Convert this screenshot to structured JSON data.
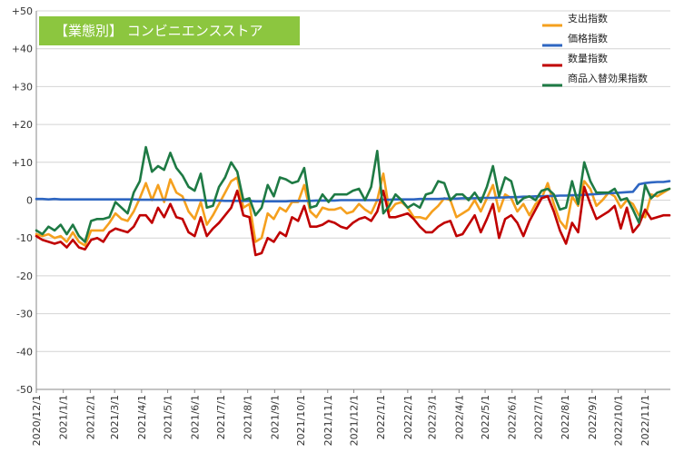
{
  "chart_data": {
    "type": "line",
    "title": "【業態別】 コンビニエンスストア",
    "title_bg_color": "#8cc63f",
    "xlabel": "",
    "ylabel": "",
    "ylim": [
      -50,
      50
    ],
    "y_ticks": [
      -50,
      -40,
      -30,
      -20,
      -10,
      0,
      10,
      20,
      30,
      40,
      50
    ],
    "y_tick_labels": [
      "-50",
      "-40",
      "-30",
      "-20",
      "-10",
      "0",
      "+10",
      "+20",
      "+30",
      "+40",
      "+50"
    ],
    "x_tick_labels": [
      "2020/12/1",
      "2021/1/1",
      "2021/2/1",
      "2021/3/1",
      "2021/4/1",
      "2021/5/1",
      "2021/6/1",
      "2021/7/1",
      "2021/8/1",
      "2021/9/1",
      "2021/10/1",
      "2021/11/1",
      "2021/12/1",
      "2022/1/1",
      "2022/2/1",
      "2022/3/1",
      "2022/4/1",
      "2022/5/1",
      "2022/6/1",
      "2022/7/1",
      "2022/8/1",
      "2022/9/1",
      "2022/10/1",
      "2022/11/1"
    ],
    "x_start": "2020/12/1",
    "x_end": "2022/11/30",
    "grid": "horizontal",
    "legend_position": "top-right",
    "x": [
      "2020/12/1",
      "2020/12/8",
      "2020/12/15",
      "2020/12/22",
      "2020/12/29",
      "2021/1/5",
      "2021/1/12",
      "2021/1/19",
      "2021/1/26",
      "2021/2/2",
      "2021/2/9",
      "2021/2/16",
      "2021/2/23",
      "2021/3/2",
      "2021/3/9",
      "2021/3/16",
      "2021/3/23",
      "2021/3/30",
      "2021/4/6",
      "2021/4/13",
      "2021/4/20",
      "2021/4/27",
      "2021/5/4",
      "2021/5/11",
      "2021/5/18",
      "2021/5/25",
      "2021/6/1",
      "2021/6/8",
      "2021/6/15",
      "2021/6/22",
      "2021/6/29",
      "2021/7/6",
      "2021/7/13",
      "2021/7/20",
      "2021/7/27",
      "2021/8/3",
      "2021/8/10",
      "2021/8/17",
      "2021/8/24",
      "2021/8/31",
      "2021/9/7",
      "2021/9/14",
      "2021/9/21",
      "2021/9/28",
      "2021/10/5",
      "2021/10/12",
      "2021/10/19",
      "2021/10/26",
      "2021/11/2",
      "2021/11/9",
      "2021/11/16",
      "2021/11/23",
      "2021/11/30",
      "2021/12/7",
      "2021/12/14",
      "2021/12/21",
      "2021/12/28",
      "2022/1/4",
      "2022/1/11",
      "2022/1/18",
      "2022/1/25",
      "2022/2/1",
      "2022/2/8",
      "2022/2/15",
      "2022/2/22",
      "2022/3/1",
      "2022/3/8",
      "2022/3/15",
      "2022/3/22",
      "2022/3/29",
      "2022/4/5",
      "2022/4/12",
      "2022/4/19",
      "2022/4/26",
      "2022/5/3",
      "2022/5/10",
      "2022/5/17",
      "2022/5/24",
      "2022/5/31",
      "2022/6/7",
      "2022/6/14",
      "2022/6/21",
      "2022/6/28",
      "2022/7/5",
      "2022/7/12",
      "2022/7/19",
      "2022/7/26",
      "2022/8/2",
      "2022/8/9",
      "2022/8/16",
      "2022/8/23",
      "2022/8/30",
      "2022/9/6",
      "2022/9/13",
      "2022/9/20",
      "2022/9/27",
      "2022/10/4",
      "2022/10/11",
      "2022/10/18",
      "2022/10/25",
      "2022/11/1",
      "2022/11/8",
      "2022/11/15",
      "2022/11/22",
      "2022/11/29"
    ],
    "series": [
      {
        "name": "支出指数",
        "color": "#f5a01e",
        "values": [
          -9,
          -9.5,
          -9,
          -10,
          -9.5,
          -11,
          -8.5,
          -11,
          -12,
          -8,
          -8,
          -8,
          -6,
          -3.5,
          -5,
          -5.5,
          -3,
          0.5,
          4.5,
          0,
          4,
          -0.5,
          5.5,
          2,
          1,
          -3,
          -5,
          -0.5,
          -6.5,
          -4,
          -1,
          2,
          5,
          6,
          -2,
          -1,
          -11,
          -10,
          -3.5,
          -5,
          -2,
          -3,
          -0.5,
          -0.5,
          4,
          -3,
          -4.5,
          -2,
          -2.5,
          -2.5,
          -2,
          -3.5,
          -3,
          -1,
          -2.5,
          -3.5,
          0,
          7,
          -3,
          -1,
          -0.5,
          -2,
          -4.5,
          -4.5,
          -5,
          -3,
          -1.5,
          0.5,
          0,
          -4.5,
          -3.5,
          -2.5,
          0,
          -3,
          0.5,
          4,
          -3,
          1.5,
          0.5,
          -3,
          -1,
          -4,
          -1,
          0.5,
          4.5,
          -1,
          -5.5,
          -7.5,
          1,
          -1.5,
          5,
          3,
          -1.5,
          0,
          2,
          1,
          -2,
          0,
          -1,
          -4,
          -4.5,
          1.5,
          1,
          2,
          3
        ]
      },
      {
        "name": "価格指数",
        "color": "#2e66c2",
        "values": [
          0.3,
          0.3,
          0.2,
          0.3,
          0.2,
          0.2,
          0.2,
          0.2,
          0.2,
          0.2,
          0.2,
          0.2,
          0.2,
          0.2,
          0.2,
          0.2,
          0.2,
          0.1,
          0.1,
          0.1,
          0.1,
          0.1,
          0.1,
          0.1,
          0.1,
          0.0,
          0.0,
          0.0,
          -0.1,
          -0.1,
          -0.1,
          -0.2,
          -0.2,
          -0.2,
          -0.2,
          -0.2,
          -0.3,
          -0.3,
          -0.3,
          -0.3,
          -0.3,
          -0.3,
          -0.2,
          -0.2,
          -0.2,
          -0.2,
          -0.1,
          -0.1,
          -0.1,
          -0.1,
          0.0,
          0.0,
          0.0,
          0.0,
          0.0,
          0.0,
          0.0,
          0.1,
          0.1,
          0.2,
          0.2,
          0.2,
          0.2,
          0.3,
          0.3,
          0.3,
          0.3,
          0.4,
          0.4,
          0.4,
          0.5,
          0.5,
          0.5,
          0.6,
          0.6,
          0.6,
          0.7,
          0.7,
          0.8,
          0.8,
          0.9,
          0.9,
          1.0,
          1.0,
          1.1,
          1.1,
          1.2,
          1.2,
          1.3,
          1.3,
          1.4,
          1.5,
          1.6,
          1.7,
          1.8,
          1.9,
          2.0,
          2.1,
          2.2,
          4.2,
          4.5,
          4.7,
          4.8,
          4.8,
          5.0
        ]
      },
      {
        "name": "数量指数",
        "color": "#c00000",
        "values": [
          -9.5,
          -10.5,
          -11,
          -11.5,
          -11,
          -12.5,
          -10.5,
          -12.5,
          -13,
          -10.5,
          -10,
          -11,
          -8.5,
          -7.5,
          -8,
          -8.5,
          -7,
          -4,
          -4,
          -6,
          -2,
          -4.5,
          -1,
          -4.5,
          -5,
          -8.5,
          -9.5,
          -4.5,
          -9.5,
          -7.5,
          -6,
          -4,
          -2,
          2.5,
          -4,
          -4.5,
          -14.5,
          -14,
          -10,
          -11,
          -8.5,
          -9.5,
          -4.5,
          -5.5,
          -1.5,
          -7,
          -7,
          -6.5,
          -5.5,
          -6,
          -7,
          -7.5,
          -6,
          -5,
          -4.5,
          -5.5,
          -3,
          2.5,
          -4.5,
          -4.5,
          -4,
          -3.5,
          -5,
          -7,
          -8.5,
          -8.5,
          -7,
          -6,
          -5.5,
          -9.5,
          -9,
          -6.5,
          -4,
          -8.5,
          -5,
          -1,
          -10,
          -5,
          -4,
          -6,
          -9.5,
          -5.5,
          -2.5,
          0.5,
          1,
          -3,
          -8,
          -11.5,
          -6,
          -8.5,
          3.5,
          -1,
          -5,
          -4,
          -3,
          -1.5,
          -7.5,
          -2,
          -8.5,
          -6.5,
          -2.5,
          -5,
          -4.5,
          -4,
          -4
        ]
      },
      {
        "name": "商品入替効果指数",
        "color": "#1e7a44",
        "values": [
          -8,
          -9,
          -7,
          -8,
          -6.5,
          -9,
          -6.5,
          -9.5,
          -11,
          -5.5,
          -5,
          -5,
          -4.5,
          -0.5,
          -2,
          -3.5,
          2,
          5,
          14,
          7.5,
          9,
          8,
          12.5,
          8.5,
          6.5,
          3.5,
          2.5,
          7,
          -2,
          -1.5,
          3.5,
          6,
          10,
          7.5,
          0,
          0.5,
          -4,
          -2,
          4,
          1,
          6,
          5.5,
          4.5,
          5,
          8.5,
          -2,
          -1.5,
          1.5,
          -0.5,
          1.5,
          1.5,
          1.5,
          2.5,
          3,
          0,
          3.5,
          13,
          -3.5,
          -1.5,
          1.5,
          0,
          -2,
          -1,
          -2,
          1.5,
          2,
          5,
          4.5,
          0,
          1.5,
          1.5,
          0,
          2,
          -0.5,
          3.5,
          9,
          1,
          6,
          5,
          -1,
          0.5,
          1,
          0,
          2.5,
          3,
          1.5,
          -2.5,
          -2,
          5,
          -1,
          10,
          5,
          2,
          2,
          2,
          3,
          0,
          0.5,
          -2.5,
          -6,
          4,
          0.5,
          2,
          2.5,
          3
        ]
      }
    ]
  }
}
